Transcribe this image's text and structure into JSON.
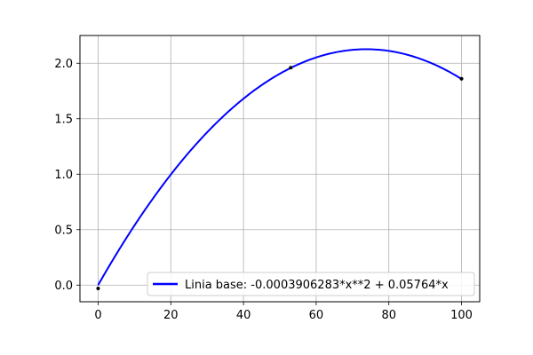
{
  "chart_data": {
    "type": "line",
    "title": "",
    "xlabel": "",
    "ylabel": "",
    "xlim": [
      -5,
      105
    ],
    "ylim": [
      -0.15,
      2.25
    ],
    "x_ticks": [
      0,
      20,
      40,
      60,
      80,
      100
    ],
    "y_ticks": [
      0.0,
      0.5,
      1.0,
      1.5,
      2.0
    ],
    "x_tick_labels": [
      "0",
      "20",
      "40",
      "60",
      "80",
      "100"
    ],
    "y_tick_labels": [
      "0.0",
      "0.5",
      "1.0",
      "1.5",
      "2.0"
    ],
    "grid": true,
    "legend_position": "lower-right",
    "series": [
      {
        "name": "Linia base: -0.0003906283*x**2 + 0.05764*x",
        "color": "#0000ff",
        "function": {
          "a": -0.0003906283,
          "b": 0.05764,
          "c": 0
        },
        "x_range": [
          0,
          100
        ]
      }
    ],
    "points": [
      {
        "x": 0,
        "y": -0.03
      },
      {
        "x": 53,
        "y": 1.96
      },
      {
        "x": 100,
        "y": 1.86
      }
    ],
    "points_color": "#000000"
  }
}
